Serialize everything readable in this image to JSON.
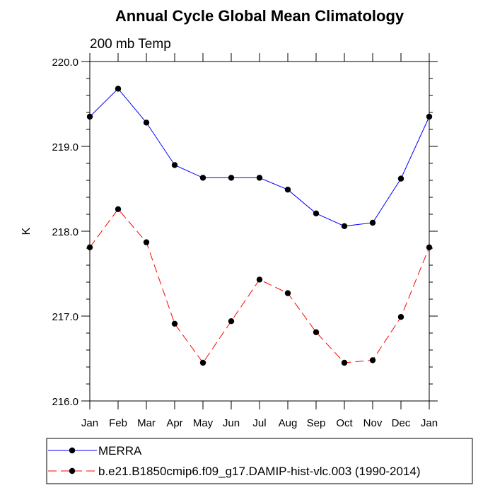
{
  "chart_data": {
    "type": "line",
    "title": "Annual Cycle Global Mean Climatology",
    "subtitle": "200 mb Temp",
    "xlabel": "",
    "ylabel": "K",
    "categories": [
      "Jan",
      "Feb",
      "Mar",
      "Apr",
      "May",
      "Jun",
      "Jul",
      "Aug",
      "Sep",
      "Oct",
      "Nov",
      "Dec",
      "Jan"
    ],
    "ylim": [
      216.0,
      220.0
    ],
    "yticks": [
      216.0,
      217.0,
      218.0,
      219.0,
      220.0
    ],
    "ytick_labels": [
      "216.0",
      "217.0",
      "218.0",
      "219.0",
      "220.0"
    ],
    "grid": false,
    "legend_position": "bottom",
    "series": [
      {
        "name": "MERRA",
        "color": "#0000ff",
        "dash": "solid",
        "marker": "circle",
        "values": [
          219.35,
          219.68,
          219.28,
          218.78,
          218.63,
          218.63,
          218.63,
          218.49,
          218.21,
          218.06,
          218.1,
          218.62,
          219.35
        ]
      },
      {
        "name": "b.e21.B1850cmip6.f09_g17.DAMIP-hist-vlc.003 (1990-2014)",
        "color": "#ff0000",
        "dash": "dashed",
        "marker": "circle",
        "values": [
          217.81,
          218.26,
          217.87,
          216.91,
          216.45,
          216.94,
          217.43,
          217.27,
          216.81,
          216.45,
          216.48,
          216.99,
          217.81
        ]
      }
    ]
  }
}
